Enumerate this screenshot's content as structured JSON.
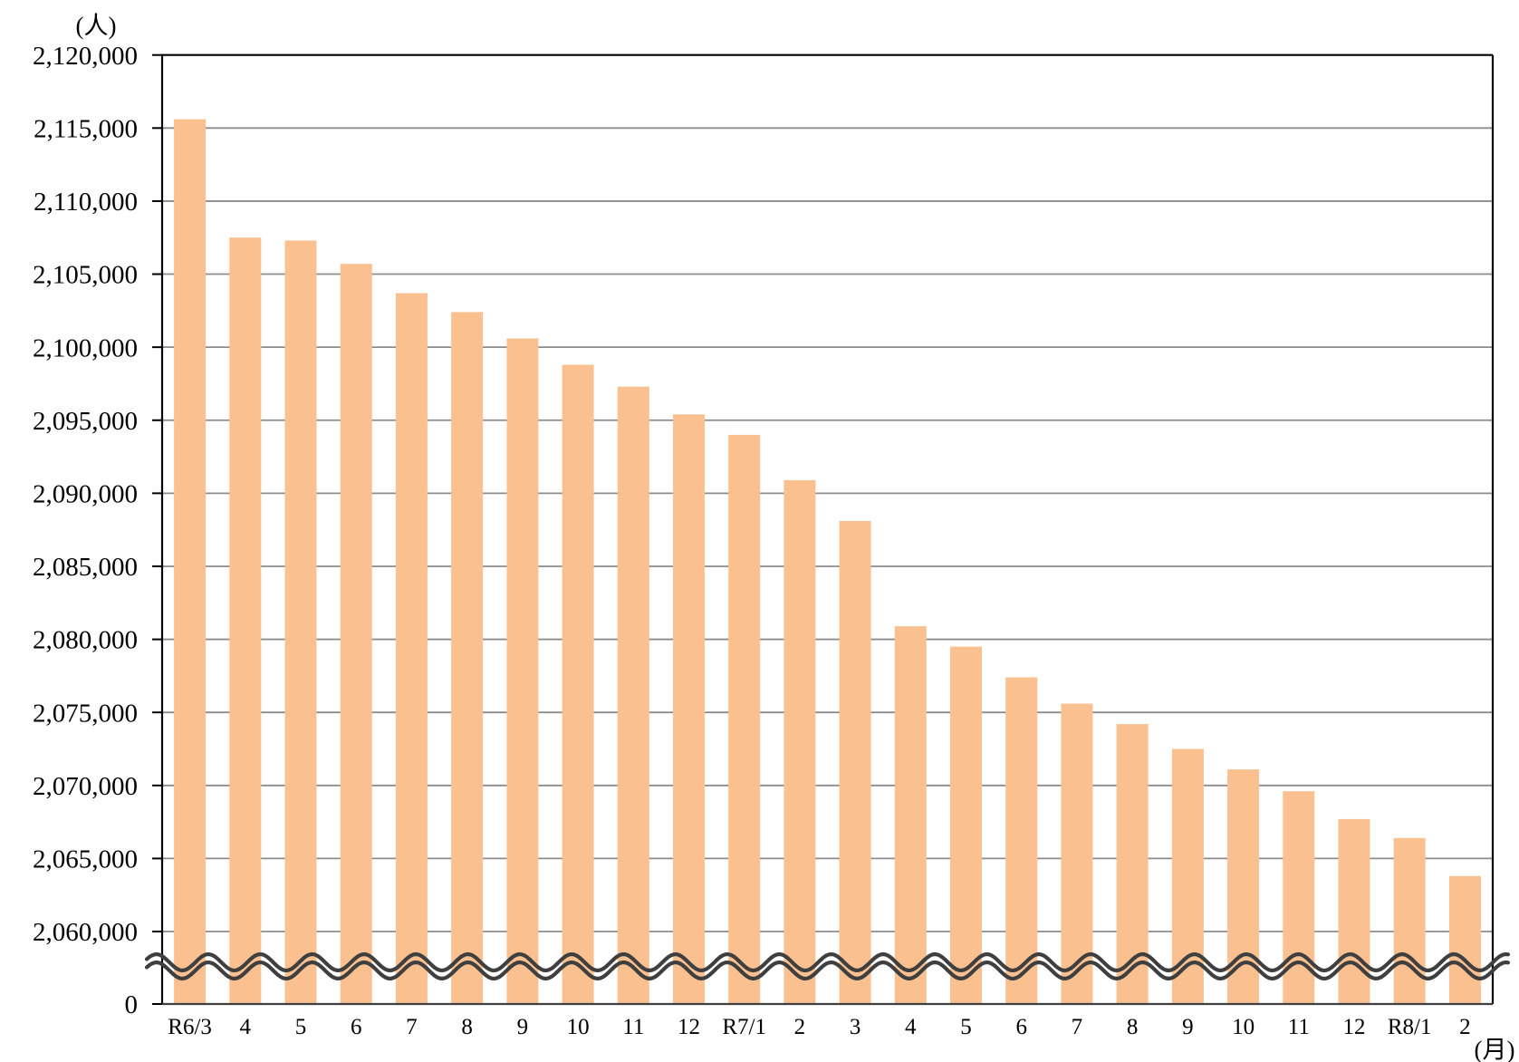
{
  "chart_data": {
    "type": "bar",
    "title": "",
    "y_unit_label": "(人)",
    "x_unit_label": "(月)",
    "categories": [
      "R6/3",
      "4",
      "5",
      "6",
      "7",
      "8",
      "9",
      "10",
      "11",
      "12",
      "R7/1",
      "2",
      "3",
      "4",
      "5",
      "6",
      "7",
      "8",
      "9",
      "10",
      "11",
      "12",
      "R8/1",
      "2"
    ],
    "values": [
      2115600,
      2107500,
      2107300,
      2105700,
      2103700,
      2102400,
      2100600,
      2098800,
      2097300,
      2095400,
      2094000,
      2090900,
      2088100,
      2080900,
      2079500,
      2077400,
      2075600,
      2074200,
      2072500,
      2071100,
      2069600,
      2067700,
      2066400,
      2063800
    ],
    "y_axis": {
      "tick_values": [
        2120000,
        2115000,
        2110000,
        2105000,
        2100000,
        2095000,
        2090000,
        2085000,
        2080000,
        2075000,
        2070000,
        2065000,
        2060000,
        0
      ],
      "tick_labels": [
        "2,120,000",
        "2,115,000",
        "2,110,000",
        "2,105,000",
        "2,100,000",
        "2,095,000",
        "2,090,000",
        "2,085,000",
        "2,080,000",
        "2,075,000",
        "2,070,000",
        "2,065,000",
        "2,060,000",
        "0"
      ],
      "interval": 5000,
      "display_range": [
        2060000,
        2120000
      ],
      "axis_break": true
    },
    "grid": true,
    "legend": false,
    "colors": {
      "bar": "#FAC090",
      "gridline": "#8C8C8C",
      "axis": "#000000",
      "baseline": "#404040",
      "break_line": "#3F3F3F",
      "text": "#000000",
      "background": "#FFFFFF"
    }
  }
}
